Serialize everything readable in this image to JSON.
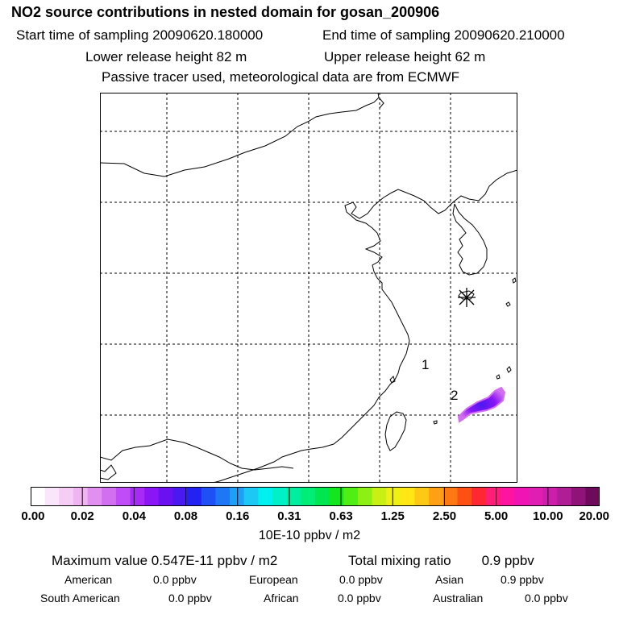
{
  "header": {
    "title": "NO2 source contributions in nested domain for gosan_200906",
    "start_time": "Start time of sampling 20090620.180000",
    "end_time": "End time of sampling 20090620.210000",
    "lower_release": "Lower release height   82 m",
    "upper_release": "Upper release height   62 m",
    "tracer_note": "Passive tracer used, meteorological data are from ECMWF"
  },
  "map": {
    "labels": [
      "1",
      "2"
    ],
    "station_marker": "asterisk-icon"
  },
  "colorbar": {
    "colors": [
      "#ffffff",
      "#fae6fa",
      "#f5cdf5",
      "#f0b4f0",
      "#e190f0",
      "#d26ef0",
      "#c04cf8",
      "#a82af5",
      "#8a16f5",
      "#6b10f0",
      "#4a18f0",
      "#2222f2",
      "#1e50f5",
      "#1e78f5",
      "#1ea0f5",
      "#1ec8f5",
      "#00f0f0",
      "#00f0c8",
      "#00eea0",
      "#00ee78",
      "#00e650",
      "#14e61e",
      "#50ee14",
      "#8cf014",
      "#c8f014",
      "#f0f014",
      "#ffe614",
      "#ffc814",
      "#ffa014",
      "#ff7814",
      "#ff5014",
      "#ff2832",
      "#ff1e78",
      "#ff14a0",
      "#f014b4",
      "#e01eb4",
      "#cc1eaa",
      "#b01e96",
      "#901478",
      "#6e0a5a"
    ],
    "ticks": [
      "0.00",
      "0.02",
      "0.04",
      "0.08",
      "0.16",
      "0.31",
      "0.63",
      "1.25",
      "2.50",
      "5.00",
      "10.00",
      "20.00"
    ],
    "units": "10E-10 ppbv / m2"
  },
  "summary": {
    "max_value": "Maximum value  0.547E-11 ppbv / m2",
    "total_label": "Total mixing ratio",
    "total_value": "0.9 ppbv",
    "rows": [
      [
        {
          "label": "American",
          "value": "0.0 ppbv"
        },
        {
          "label": "European",
          "value": "0.0 ppbv"
        },
        {
          "label": "Asian",
          "value": "0.9 ppbv"
        }
      ],
      [
        {
          "label": "South American",
          "value": "0.0 ppbv"
        },
        {
          "label": "African",
          "value": "0.0 ppbv"
        },
        {
          "label": "Australian",
          "value": "0.0 ppbv"
        }
      ]
    ]
  }
}
